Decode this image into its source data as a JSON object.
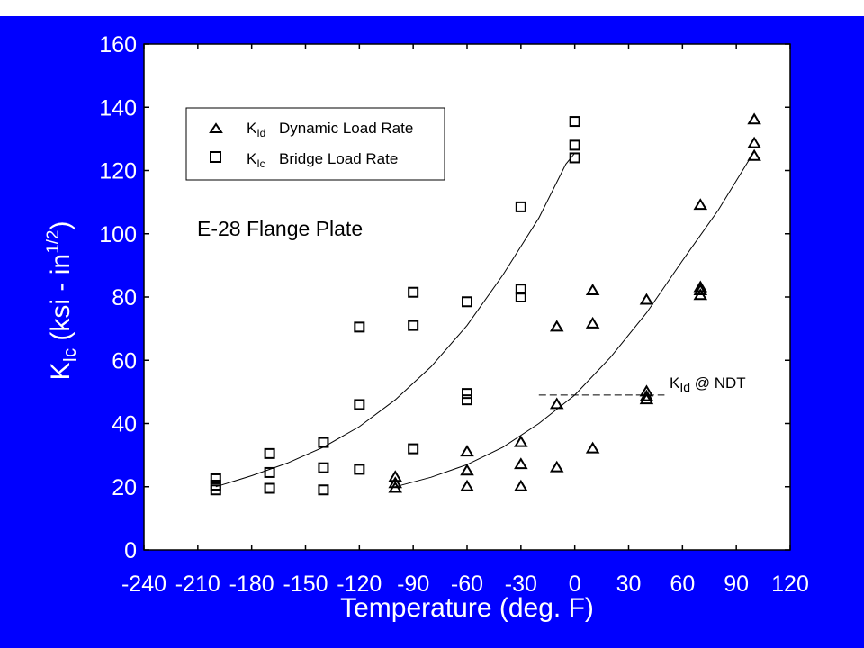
{
  "chart_data": {
    "type": "scatter",
    "xlabel": "Temperature  (deg. F)",
    "ylabel": {
      "main": "K",
      "sub": "Ic",
      "rest": " (ksi - in",
      "sup": "1/2",
      "close": ")"
    },
    "xlim": [
      -240,
      120
    ],
    "ylim": [
      0,
      160
    ],
    "xticks": [
      -240,
      -210,
      -180,
      -150,
      -120,
      -90,
      -60,
      -30,
      0,
      30,
      60,
      90,
      120
    ],
    "yticks": [
      0,
      20,
      40,
      60,
      80,
      100,
      120,
      140,
      160
    ],
    "grid": false,
    "legend_position": "top-left",
    "annotation": "E-28 Flange Plate",
    "ndt_label": {
      "main": "K",
      "sub": "Id",
      "rest": " @ NDT"
    },
    "ndt_line": {
      "x": [
        -20,
        50
      ],
      "y": 49
    },
    "series": [
      {
        "name": "Dynamic Load Rate",
        "legend_main": "K",
        "legend_sub": "Id",
        "marker": "triangle",
        "points": [
          [
            -100,
            23
          ],
          [
            -100,
            21
          ],
          [
            -100,
            19.5
          ],
          [
            -60,
            31
          ],
          [
            -60,
            25
          ],
          [
            -60,
            20
          ],
          [
            -30,
            34
          ],
          [
            -30,
            27
          ],
          [
            -30,
            20
          ],
          [
            -10,
            70.5
          ],
          [
            -10,
            46
          ],
          [
            -10,
            26
          ],
          [
            10,
            82
          ],
          [
            10,
            71.5
          ],
          [
            10,
            32
          ],
          [
            40,
            79
          ],
          [
            40,
            50
          ],
          [
            40,
            48.5
          ],
          [
            40,
            47.5
          ],
          [
            70,
            109
          ],
          [
            70,
            83
          ],
          [
            70,
            82
          ],
          [
            70,
            80.5
          ],
          [
            100,
            136
          ],
          [
            100,
            128.5
          ],
          [
            100,
            124.5
          ]
        ],
        "fit": [
          [
            -100,
            20
          ],
          [
            -80,
            23
          ],
          [
            -60,
            27
          ],
          [
            -40,
            32.5
          ],
          [
            -20,
            40
          ],
          [
            0,
            49
          ],
          [
            20,
            61
          ],
          [
            40,
            75
          ],
          [
            60,
            91.5
          ],
          [
            80,
            107.5
          ],
          [
            100,
            126
          ]
        ]
      },
      {
        "name": "Bridge Load Rate",
        "legend_main": "K",
        "legend_sub": "Ic",
        "marker": "square",
        "points": [
          [
            -200,
            22.5
          ],
          [
            -200,
            20.5
          ],
          [
            -200,
            19
          ],
          [
            -170,
            30.5
          ],
          [
            -170,
            24.5
          ],
          [
            -170,
            19.5
          ],
          [
            -140,
            34
          ],
          [
            -140,
            26
          ],
          [
            -140,
            19
          ],
          [
            -120,
            70.5
          ],
          [
            -120,
            46
          ],
          [
            -120,
            25.5
          ],
          [
            -90,
            81.5
          ],
          [
            -90,
            71
          ],
          [
            -90,
            32
          ],
          [
            -60,
            78.5
          ],
          [
            -60,
            49.5
          ],
          [
            -60,
            47.5
          ],
          [
            -30,
            108.5
          ],
          [
            -30,
            82.5
          ],
          [
            -30,
            80
          ],
          [
            0,
            135.5
          ],
          [
            0,
            128
          ],
          [
            0,
            124
          ]
        ],
        "fit": [
          [
            -200,
            20
          ],
          [
            -180,
            23.5
          ],
          [
            -160,
            27.5
          ],
          [
            -140,
            32.5
          ],
          [
            -120,
            39
          ],
          [
            -100,
            47.5
          ],
          [
            -80,
            58
          ],
          [
            -60,
            71
          ],
          [
            -40,
            87
          ],
          [
            -20,
            105
          ],
          [
            -5,
            122
          ],
          [
            0,
            125.5
          ]
        ]
      }
    ]
  }
}
